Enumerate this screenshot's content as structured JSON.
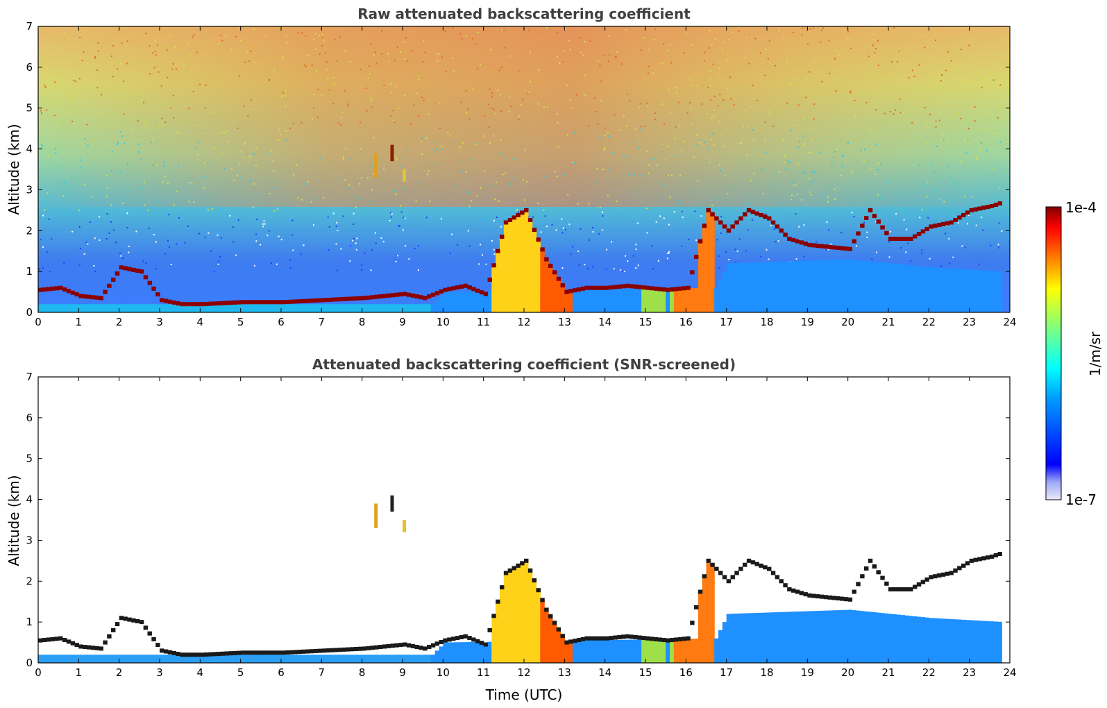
{
  "chart_data": [
    {
      "type": "heatmap",
      "title": "Raw attenuated backscattering coefficient",
      "xlabel": "",
      "ylabel": "Altitude (km)",
      "xlim": [
        0,
        24
      ],
      "ylim": [
        0,
        7
      ],
      "xticks": [
        0,
        1,
        2,
        3,
        4,
        5,
        6,
        7,
        8,
        9,
        10,
        11,
        12,
        13,
        14,
        15,
        16,
        17,
        18,
        19,
        20,
        21,
        22,
        23,
        24
      ],
      "yticks": [
        0,
        1,
        2,
        3,
        4,
        5,
        6,
        7
      ],
      "colorscale": "jet",
      "color_range": [
        "1e-7",
        "1e-4"
      ],
      "cloud_layer_km": [
        [
          0.0,
          0.55
        ],
        [
          0.5,
          0.6
        ],
        [
          1.0,
          0.4
        ],
        [
          1.5,
          0.35
        ],
        [
          2.0,
          1.1
        ],
        [
          2.5,
          1.0
        ],
        [
          3.0,
          0.3
        ],
        [
          3.5,
          0.2
        ],
        [
          4.0,
          0.2
        ],
        [
          5.0,
          0.25
        ],
        [
          6.0,
          0.25
        ],
        [
          7.0,
          0.3
        ],
        [
          8.0,
          0.35
        ],
        [
          8.5,
          0.4
        ],
        [
          9.0,
          0.45
        ],
        [
          9.5,
          0.35
        ],
        [
          10.0,
          0.55
        ],
        [
          10.5,
          0.65
        ],
        [
          11.0,
          0.45
        ],
        [
          11.5,
          2.2
        ],
        [
          12.0,
          2.5
        ],
        [
          12.5,
          1.3
        ],
        [
          13.0,
          0.5
        ],
        [
          13.5,
          0.6
        ],
        [
          14.0,
          0.6
        ],
        [
          14.5,
          0.65
        ],
        [
          15.0,
          0.6
        ],
        [
          15.5,
          0.55
        ],
        [
          16.0,
          0.6
        ],
        [
          16.5,
          2.5
        ],
        [
          17.0,
          2.0
        ],
        [
          17.5,
          2.5
        ],
        [
          18.0,
          2.3
        ],
        [
          18.5,
          1.8
        ],
        [
          19.0,
          1.65
        ],
        [
          19.5,
          1.6
        ],
        [
          20.0,
          1.55
        ],
        [
          20.5,
          2.5
        ],
        [
          21.0,
          1.8
        ],
        [
          21.5,
          1.8
        ],
        [
          22.0,
          2.1
        ],
        [
          22.5,
          2.2
        ],
        [
          23.0,
          2.5
        ],
        [
          23.5,
          2.6
        ],
        [
          23.8,
          2.7
        ]
      ],
      "aerosol_top_km": [
        [
          0,
          0.2
        ],
        [
          9.7,
          0.2
        ],
        [
          10.0,
          0.5
        ],
        [
          16.7,
          0.6
        ],
        [
          17.0,
          1.2
        ],
        [
          20.0,
          1.3
        ],
        [
          22.0,
          1.1
        ],
        [
          23.8,
          1.0
        ]
      ]
    },
    {
      "type": "heatmap",
      "title": "Attenuated backscattering coefficient (SNR-screened)",
      "xlabel": "Time (UTC)",
      "ylabel": "Altitude (km)",
      "xlim": [
        0,
        24
      ],
      "ylim": [
        0,
        7
      ],
      "xticks": [
        0,
        1,
        2,
        3,
        4,
        5,
        6,
        7,
        8,
        9,
        10,
        11,
        12,
        13,
        14,
        15,
        16,
        17,
        18,
        19,
        20,
        21,
        22,
        23,
        24
      ],
      "yticks": [
        0,
        1,
        2,
        3,
        4,
        5,
        6,
        7
      ],
      "colorscale": "jet",
      "color_range": [
        "1e-7",
        "1e-4"
      ]
    }
  ],
  "colorbar": {
    "label": "1/m/sr",
    "max_label": "1e-4",
    "min_label": "1e-7"
  },
  "colors": {
    "low": "#ffffff",
    "blue": "#0000ff",
    "cyan": "#00ffff",
    "yellow": "#ffff00",
    "red": "#ff0000",
    "dark_red": "#800000"
  }
}
